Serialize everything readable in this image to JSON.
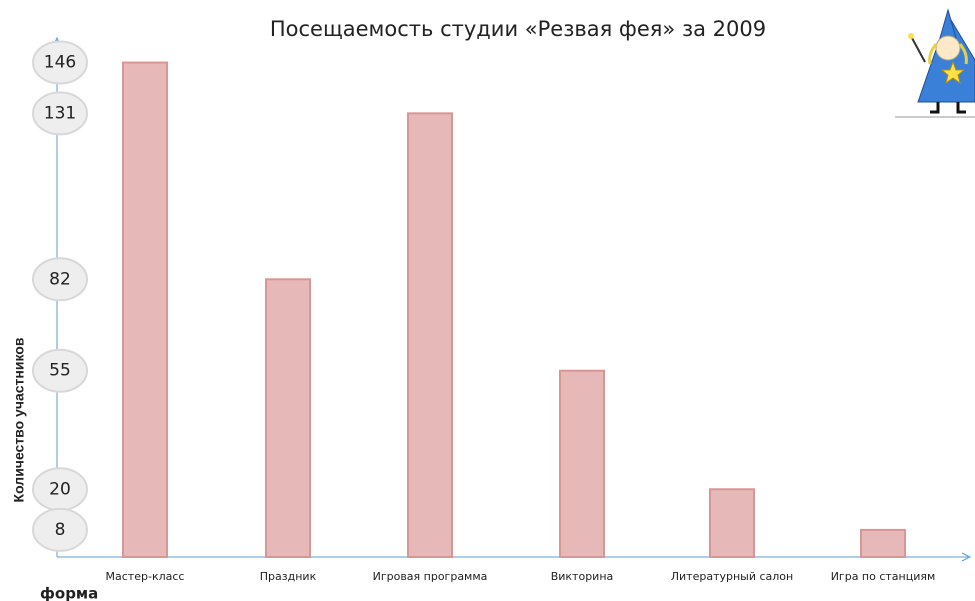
{
  "chart_data": {
    "type": "bar",
    "title": "Посещаемость студии «Резвая фея» за 2009",
    "categories": [
      "Мастер-класс",
      "Праздник",
      "Игровая программа",
      "Викторина",
      "Литературный салон",
      "Игра по станциям"
    ],
    "values": [
      146,
      82,
      131,
      55,
      20,
      8
    ],
    "color": "#e6b8b8",
    "ylim": [
      0,
      150
    ],
    "y_label": "Количество участников",
    "x_label": "форма"
  }
}
